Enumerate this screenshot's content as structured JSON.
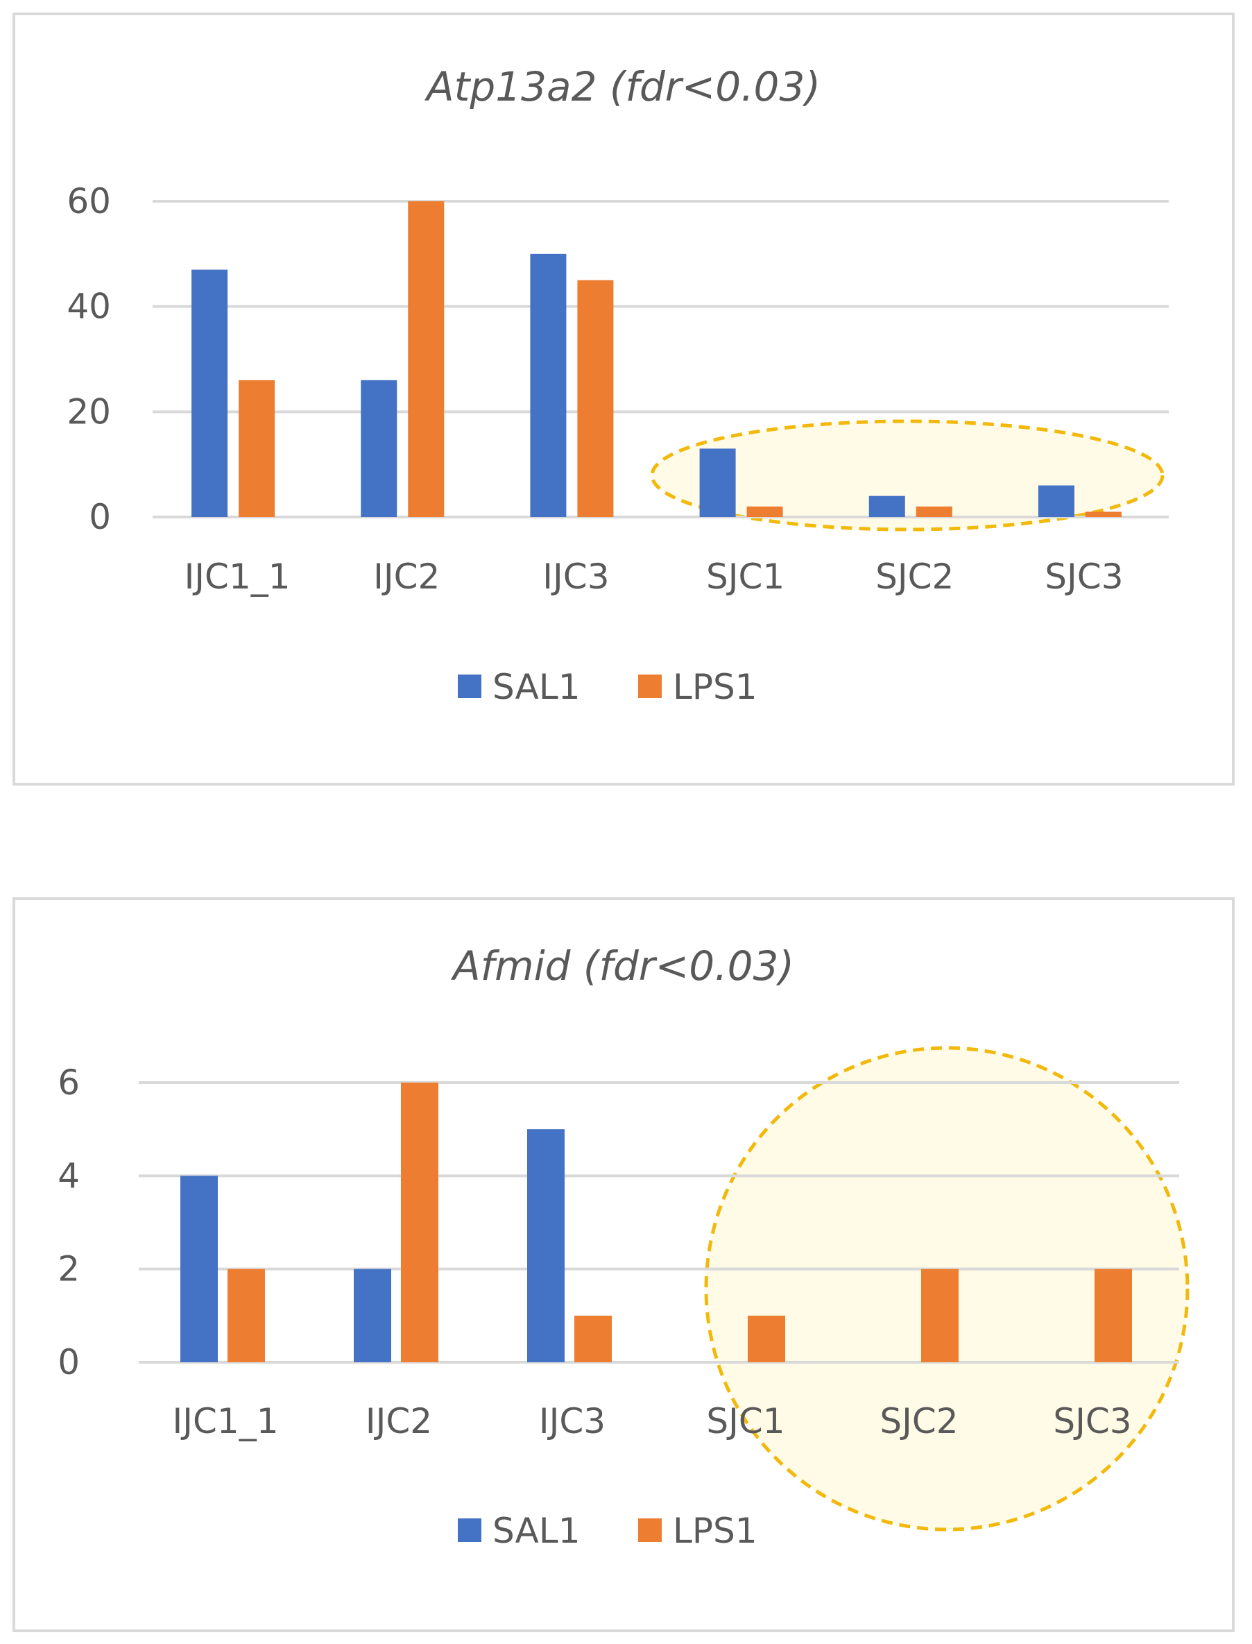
{
  "colors": {
    "sal": "#4472C4",
    "lps": "#ED7D31",
    "grid": "#D9D9D9",
    "axis_text": "#595959",
    "highlight_stroke": "#F2B90C",
    "highlight_fill": "#FFFBE6",
    "frame": "#D9D9D9"
  },
  "chart_data": [
    {
      "type": "bar",
      "title": "Atp13a2 (fdr<0.03)",
      "categories": [
        "IJC1_1",
        "IJC2",
        "IJC3",
        "SJC1",
        "SJC2",
        "SJC3"
      ],
      "series": [
        {
          "name": "SAL1",
          "values": [
            47,
            26,
            50,
            13,
            4,
            6
          ]
        },
        {
          "name": "LPS1",
          "values": [
            26,
            60,
            45,
            2,
            2,
            1
          ]
        }
      ],
      "ylim": [
        0,
        60
      ],
      "yticks": [
        "0",
        "20",
        "40",
        "60"
      ],
      "ytick_values": [
        0,
        20,
        40,
        60
      ],
      "xlabel": "",
      "ylabel": "",
      "grid": true,
      "legend": "bottom-center",
      "highlight": {
        "shape": "ellipse",
        "categories": [
          "SJC1",
          "SJC2",
          "SJC3"
        ]
      }
    },
    {
      "type": "bar",
      "title": "Afmid (fdr<0.03)",
      "categories": [
        "IJC1_1",
        "IJC2",
        "IJC3",
        "SJC1",
        "SJC2",
        "SJC3"
      ],
      "series": [
        {
          "name": "SAL1",
          "values": [
            4,
            2,
            5,
            0,
            0,
            0
          ]
        },
        {
          "name": "LPS1",
          "values": [
            2,
            6,
            1,
            1,
            2,
            2
          ]
        }
      ],
      "ylim": [
        0,
        6
      ],
      "yticks": [
        "0",
        "2",
        "4",
        "6"
      ],
      "ytick_values": [
        0,
        2,
        4,
        6
      ],
      "xlabel": "",
      "ylabel": "",
      "grid": true,
      "legend": "bottom-center",
      "highlight": {
        "shape": "circle",
        "categories": [
          "SJC1",
          "SJC2",
          "SJC3"
        ]
      }
    }
  ]
}
